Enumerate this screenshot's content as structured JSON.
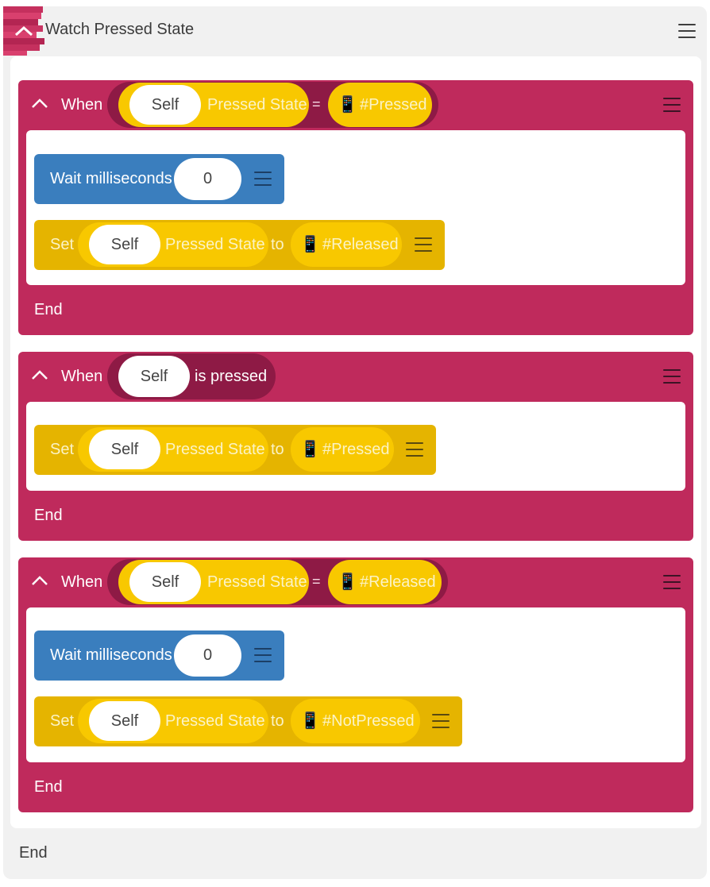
{
  "header": {
    "title": "Watch Pressed State",
    "collapse_icon": "chevron-up-icon",
    "menu_icon": "hamburger-menu-icon"
  },
  "colors": {
    "panel_bg": "#f1f1f1",
    "event_block": "#bf2a5c",
    "condition_pill": "#8e1a45",
    "property_pill": "#f8c800",
    "set_block": "#e5b400",
    "wait_block": "#3a7ebe",
    "logo": [
      "#d9406e",
      "#c5305e",
      "#b32552"
    ]
  },
  "blocks": [
    {
      "when": "When",
      "condition": {
        "object": "Self",
        "property": "Pressed State",
        "operator": "=",
        "value_icon": "phone-icon",
        "value": "#Pressed"
      },
      "actions": [
        {
          "type": "wait",
          "label": "Wait milliseconds",
          "value": "0"
        },
        {
          "type": "set",
          "label": "Set",
          "object": "Self",
          "property": "Pressed State",
          "to": "to",
          "value_icon": "phone-icon",
          "value": "#Released"
        }
      ],
      "end": "End"
    },
    {
      "when": "When",
      "condition": {
        "object": "Self",
        "event": "is pressed"
      },
      "actions": [
        {
          "type": "set",
          "label": "Set",
          "object": "Self",
          "property": "Pressed State",
          "to": "to",
          "value_icon": "phone-icon",
          "value": "#Pressed"
        }
      ],
      "end": "End"
    },
    {
      "when": "When",
      "condition": {
        "object": "Self",
        "property": "Pressed State",
        "operator": "=",
        "value_icon": "phone-icon",
        "value": "#Released"
      },
      "actions": [
        {
          "type": "wait",
          "label": "Wait milliseconds",
          "value": "0"
        },
        {
          "type": "set",
          "label": "Set",
          "object": "Self",
          "property": "Pressed State",
          "to": "to",
          "value_icon": "phone-icon",
          "value": "#NotPressed"
        }
      ],
      "end": "End"
    }
  ],
  "footer": {
    "end": "End"
  },
  "phone_glyph": "📱"
}
